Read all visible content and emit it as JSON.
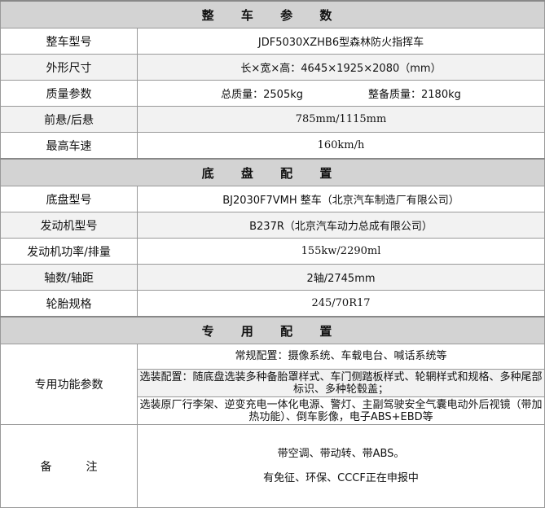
{
  "sections": [
    {
      "title": "整 车 参 数",
      "rows": [
        {
          "label": "整车型号",
          "value": "JDF5030XZHB6型森林防火指挥车"
        },
        {
          "label": "外形尺寸",
          "value": "长×宽×高：4645×1925×2080（mm）"
        },
        {
          "label": "质量参数",
          "value": "总质量：2505kg",
          "value2": "整备质量：2180kg"
        },
        {
          "label": "前悬/后悬",
          "value": "785mm/1115mm"
        },
        {
          "label": "最高车速",
          "value": "160km/h"
        }
      ]
    },
    {
      "title": "底 盘 配 置",
      "rows": [
        {
          "label": "底盘型号",
          "value": "BJ2030F7VMH 整车（北京汽车制造厂有限公司）"
        },
        {
          "label": "发动机型号",
          "value": "B237R（北京汽车动力总成有限公司）"
        },
        {
          "label": "发动机功率/排量",
          "value": "155kw/2290ml"
        },
        {
          "label": "轴数/轴距",
          "value": "2轴/2745mm"
        },
        {
          "label": "轮胎规格",
          "value": "245/70R17"
        }
      ]
    },
    {
      "title": "专 用 配 置",
      "special": {
        "label": "专用功能参数",
        "items": [
          "常规配置：摄像系统、车载电台、喊话系统等",
          "选装配置：随底盘选装多种备胎罩样式、车门侧踏板样式、轮辋样式和规格、多种尾部标识、多种轮毂盖；",
          "选装原厂行李架、逆变充电一体化电源、警灯、主副驾驶安全气囊电动外后视镜（带加热功能）、倒车影像，电子ABS+EBD等"
        ]
      },
      "remarks": {
        "label": "备　　　注",
        "lines": [
          "带空调、带动转、带ABS。",
          "有免征、环保、CCCF正在申报中"
        ]
      }
    }
  ]
}
